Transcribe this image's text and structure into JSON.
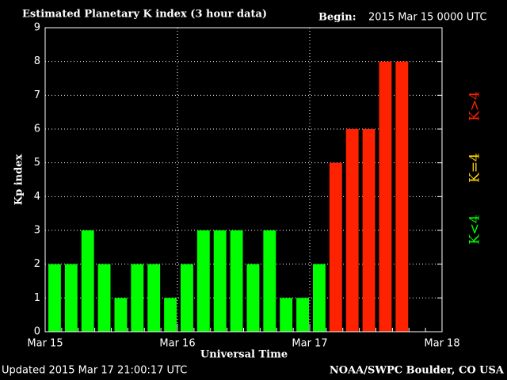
{
  "chart_data": {
    "type": "bar",
    "title": "Estimated Planetary K index (3 hour data)",
    "begin_label": "Begin:",
    "begin": "2015 Mar 15 0000 UTC",
    "ylabel": "Kp index",
    "xlabel": "Universal Time",
    "updated": "Updated 2015 Mar 17 21:00:17 UTC",
    "source": "NOAA/SWPC Boulder, CO USA",
    "xticks": [
      "Mar 15",
      "Mar 16",
      "Mar 17",
      "Mar 18"
    ],
    "values": [
      2,
      2,
      3,
      2,
      1,
      2,
      2,
      1,
      2,
      3,
      3,
      3,
      2,
      3,
      1,
      1,
      2,
      5,
      6,
      6,
      8,
      8
    ],
    "colors": [
      "#00ff00",
      "#00ff00",
      "#00ff00",
      "#00ff00",
      "#00ff00",
      "#00ff00",
      "#00ff00",
      "#00ff00",
      "#00ff00",
      "#00ff00",
      "#00ff00",
      "#00ff00",
      "#00ff00",
      "#00ff00",
      "#00ff00",
      "#00ff00",
      "#00ff00",
      "#ff2200",
      "#ff2200",
      "#ff2200",
      "#ff2200",
      "#ff2200"
    ],
    "legend": [
      {
        "name": "K<4",
        "color": "#00ff00"
      },
      {
        "name": "K=4",
        "color": "#ffd700"
      },
      {
        "name": "K>4",
        "color": "#ff2200"
      }
    ],
    "ylim": [
      0,
      9
    ],
    "yticks": [
      0,
      1,
      2,
      3,
      4,
      5,
      6,
      7,
      8,
      9
    ],
    "grid": true
  }
}
